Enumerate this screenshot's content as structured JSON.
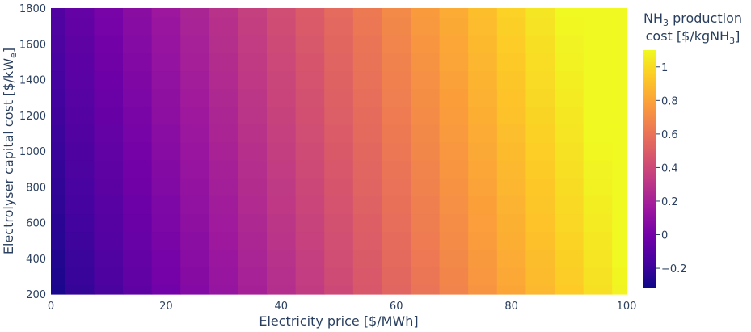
{
  "chart_data": {
    "type": "heatmap",
    "xlabel": "Electricity price [$/MWh]",
    "ylabel_main": "Electrolyser capital cost [$/kW",
    "ylabel_sub": "e",
    "ylabel_close": "]",
    "xlim": [
      0,
      100
    ],
    "ylim": [
      200,
      1800
    ],
    "x_ticks": [
      0,
      20,
      40,
      60,
      80,
      100
    ],
    "y_ticks": [
      200,
      400,
      600,
      800,
      1000,
      1200,
      1400,
      1600,
      1800
    ],
    "x": [
      0,
      5,
      10,
      15,
      20,
      25,
      30,
      35,
      40,
      45,
      50,
      55,
      60,
      65,
      70,
      75,
      80,
      85,
      90,
      95,
      100
    ],
    "y": [
      200,
      300,
      400,
      500,
      600,
      700,
      800,
      900,
      1000,
      1100,
      1200,
      1300,
      1400,
      1500,
      1600,
      1700,
      1800
    ],
    "z_model": {
      "base": -0.3,
      "per_dollar_per_mwh": 0.0136,
      "per_dollar_per_kwe": 0.0001
    },
    "colorbar": {
      "title_line1_prefix": "NH",
      "title_line1_sub": "3",
      "title_line1_suffix": " production",
      "title_line2_prefix": "cost [$/kgNH",
      "title_line2_sub": "3",
      "title_line2_suffix": "]",
      "zmin": -0.32,
      "zmax": 1.1,
      "ticks": [
        -0.2,
        0,
        0.2,
        0.4,
        0.6,
        0.8,
        1
      ],
      "tick_labels": [
        "−0.2",
        "0",
        "0.2",
        "0.4",
        "0.6",
        "0.8",
        "1"
      ]
    },
    "colorscale": "Plasma",
    "grid": false
  }
}
